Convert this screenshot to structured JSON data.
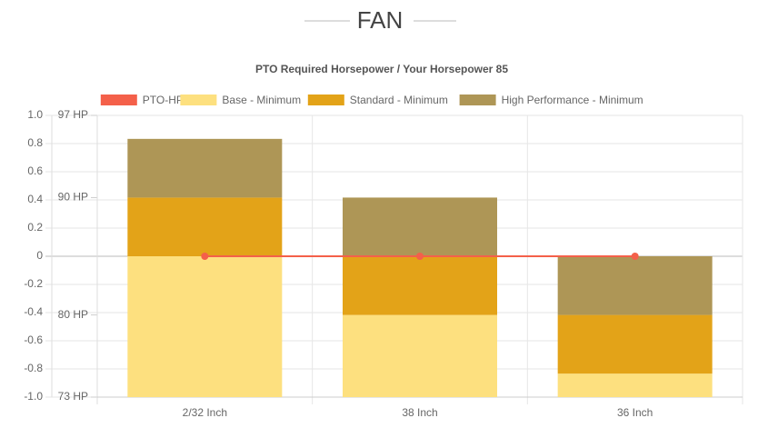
{
  "page_title": "FAN",
  "chart_data": {
    "type": "stacked-bar",
    "title": "PTO Required Horsepower / Your Horsepower 85",
    "categories": [
      "2/32 Inch",
      "38 Inch",
      "36 Inch"
    ],
    "ylim": [
      -1.0,
      1.0
    ],
    "yticks": [
      {
        "value": 1.0,
        "label": "1.0"
      },
      0.8,
      0.6,
      0.4,
      0.2,
      0,
      -0.2,
      -0.4,
      -0.6,
      -0.8,
      {
        "value": -1.0,
        "label": "-1.0"
      }
    ],
    "y2lim": [
      73,
      97
    ],
    "y2ticks": [
      {
        "value": 97,
        "label": "97 HP"
      },
      {
        "value": 90,
        "label": "90 HP"
      },
      {
        "value": 80,
        "label": "80 HP"
      },
      {
        "value": 73,
        "label": "73 HP"
      }
    ],
    "grid": true,
    "legend": "top",
    "series": [
      {
        "name": "PTO-HP",
        "type": "line",
        "color": "#f4604a",
        "values": [
          0,
          0,
          0
        ]
      },
      {
        "name": "Base - Minimum",
        "type": "bar",
        "axis": "y2",
        "color": "#fde07f",
        "values": [
          12,
          7,
          2
        ]
      },
      {
        "name": "Standard - Minimum",
        "type": "bar",
        "axis": "y2",
        "color": "#e3a318",
        "values": [
          5,
          5,
          5
        ]
      },
      {
        "name": "High Performance - Minimum",
        "type": "bar",
        "axis": "y2",
        "color": "#ae9656",
        "values": [
          5,
          5,
          5
        ]
      }
    ]
  }
}
